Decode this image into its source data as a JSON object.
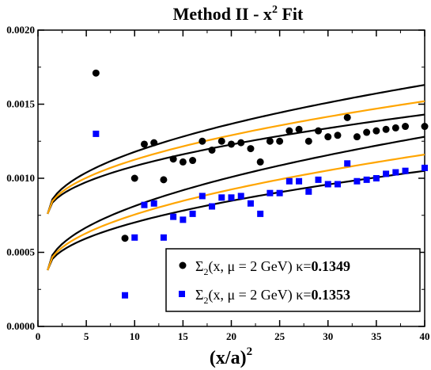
{
  "chart_data": {
    "type": "scatter",
    "title": "Method II - x",
    "title_sup": "2",
    "title_suffix": " Fit",
    "xlabel": "(x/a)",
    "xlabel_sup": "2",
    "ylabel": "",
    "xlim": [
      0,
      40
    ],
    "ylim": [
      0,
      0.002
    ],
    "x_ticks": [
      0,
      5,
      10,
      15,
      20,
      25,
      30,
      35,
      40
    ],
    "x_tick_labels": [
      "0",
      "5",
      "10",
      "15",
      "20",
      "25",
      "30",
      "35",
      "40"
    ],
    "y_ticks": [
      0,
      0.0005,
      0.001,
      0.0015,
      0.002
    ],
    "y_tick_labels": [
      "0.0000",
      "0.0005",
      "0.0010",
      "0.0015",
      "0.0020"
    ],
    "grid": false,
    "legend_position": "bottom-right",
    "colors": {
      "series_black": "#000000",
      "series_blue": "#0000ff",
      "fit_center": "#ffa500",
      "fit_band": "#000000"
    },
    "series": [
      {
        "name": "κ=0.1349",
        "legend": {
          "sigma": "Σ",
          "sub": "2",
          "args": "(x, μ = 2 GeV) κ=",
          "kappa": "0.1349"
        },
        "marker": "circle",
        "color": "#000000",
        "x": [
          6,
          9,
          10,
          11,
          12,
          13,
          14,
          15,
          16,
          17,
          18,
          19,
          20,
          21,
          22,
          23,
          24,
          25,
          26,
          27,
          28,
          29,
          30,
          31,
          32,
          33,
          34,
          35,
          36,
          37,
          38,
          40
        ],
        "y": [
          0.00171,
          0.000595,
          0.001,
          0.00123,
          0.00124,
          0.00099,
          0.00113,
          0.00111,
          0.00112,
          0.00125,
          0.00119,
          0.00125,
          0.00123,
          0.00124,
          0.0012,
          0.00111,
          0.00125,
          0.00125,
          0.00132,
          0.00133,
          0.00125,
          0.00132,
          0.00128,
          0.00129,
          0.00141,
          0.00128,
          0.00131,
          0.00132,
          0.00133,
          0.00134,
          0.00135,
          0.00135
        ]
      },
      {
        "name": "κ=0.1353",
        "legend": {
          "sigma": "Σ",
          "sub": "2",
          "args": "(x, μ = 2 GeV) κ=",
          "kappa": "0.1353"
        },
        "marker": "square",
        "color": "#0000ff",
        "x": [
          6,
          9,
          10,
          11,
          12,
          13,
          14,
          15,
          16,
          17,
          18,
          19,
          20,
          21,
          22,
          23,
          24,
          25,
          26,
          27,
          28,
          29,
          30,
          31,
          32,
          33,
          34,
          35,
          36,
          37,
          38,
          40
        ],
        "y": [
          0.0013,
          0.00021,
          0.0006,
          0.00082,
          0.00083,
          0.0006,
          0.00074,
          0.00072,
          0.00076,
          0.00088,
          0.00081,
          0.00087,
          0.00087,
          0.00088,
          0.00083,
          0.00076,
          0.0009,
          0.0009,
          0.00098,
          0.00098,
          0.00091,
          0.00099,
          0.00096,
          0.00096,
          0.0011,
          0.00098,
          0.00099,
          0.001,
          0.00103,
          0.00104,
          0.00105,
          0.00107
        ]
      }
    ],
    "fit_bands": [
      {
        "group": "κ=0.1349",
        "x_start": 1,
        "x_end": 40,
        "y_start": 0.00076,
        "upper_end": 0.00163,
        "center_end": 0.00152,
        "lower_end": 0.00143
      },
      {
        "group": "κ=0.1353",
        "x_start": 1,
        "x_end": 40,
        "y_start": 0.00038,
        "upper_end": 0.00128,
        "center_end": 0.00116,
        "lower_end": 0.00105
      }
    ]
  }
}
